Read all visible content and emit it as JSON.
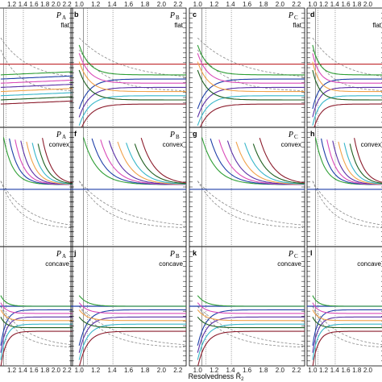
{
  "figure": {
    "xlabel": "Resolvedness R̂",
    "xlabel_sub": "2",
    "top_ticks": [
      "1.0",
      "1.2",
      "1.4",
      "1.6",
      "1.8",
      "2.0",
      "2.2"
    ],
    "bottom_ticks": [
      "1.0",
      "1.2",
      "1.4",
      "1.6",
      "1.8",
      "2.0",
      "2.2"
    ]
  },
  "chart_data": {
    "type": "line",
    "x_range": [
      0.9,
      2.3
    ],
    "vlines": [
      1.05,
      1.1,
      1.41
    ],
    "series_colors": [
      "#c0282d",
      "#2e9e35",
      "#1f3fa8",
      "#d94ab8",
      "#5a2fa6",
      "#f0a24a",
      "#36b6c9",
      "#1f5f20",
      "#8b1c2c",
      "#888888"
    ],
    "panels": [
      {
        "letter": "",
        "p": "P",
        "sub": "A",
        "shape": "flat"
      },
      {
        "letter": "b",
        "p": "P",
        "sub": "B",
        "shape": "flat"
      },
      {
        "letter": "c",
        "p": "P",
        "sub": "C",
        "shape": "flat"
      },
      {
        "letter": "d",
        "p": "",
        "sub": "",
        "shape": "flat"
      },
      {
        "letter": "",
        "p": "P",
        "sub": "A",
        "shape": "convex"
      },
      {
        "letter": "f",
        "p": "P",
        "sub": "B",
        "shape": "convex"
      },
      {
        "letter": "g",
        "p": "P",
        "sub": "C",
        "shape": "convex"
      },
      {
        "letter": "h",
        "p": "",
        "sub": "",
        "shape": "convex"
      },
      {
        "letter": "",
        "p": "P",
        "sub": "A",
        "shape": "concave"
      },
      {
        "letter": "j",
        "p": "P",
        "sub": "B",
        "shape": "concave"
      },
      {
        "letter": "k",
        "p": "P",
        "sub": "C",
        "shape": "concave"
      },
      {
        "letter": "l",
        "p": "",
        "sub": "",
        "shape": "concave"
      }
    ]
  }
}
